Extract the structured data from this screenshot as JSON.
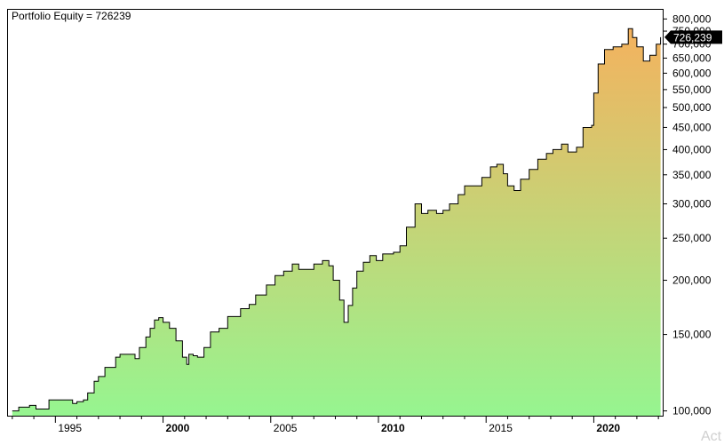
{
  "chart_data": {
    "type": "area",
    "title": "Portfolio Equity = 726239",
    "series": [
      {
        "points": [
          [
            1993.0,
            100000
          ],
          [
            1993.3,
            102000
          ],
          [
            1993.8,
            103000
          ],
          [
            1994.1,
            101000
          ],
          [
            1994.7,
            106000
          ],
          [
            1995.7,
            106000
          ],
          [
            1995.8,
            104000
          ],
          [
            1996.0,
            105000
          ],
          [
            1996.3,
            106000
          ],
          [
            1996.5,
            110000
          ],
          [
            1996.8,
            117000
          ],
          [
            1997.0,
            120000
          ],
          [
            1997.3,
            126000
          ],
          [
            1997.8,
            133000
          ],
          [
            1998.0,
            135000
          ],
          [
            1998.5,
            135000
          ],
          [
            1998.7,
            132000
          ],
          [
            1998.9,
            140000
          ],
          [
            1999.2,
            148000
          ],
          [
            1999.4,
            155000
          ],
          [
            1999.6,
            162000
          ],
          [
            1999.8,
            164000
          ],
          [
            2000.0,
            160000
          ],
          [
            2000.3,
            155000
          ],
          [
            2000.6,
            145000
          ],
          [
            2000.9,
            133000
          ],
          [
            2001.1,
            128000
          ],
          [
            2001.2,
            135000
          ],
          [
            2001.4,
            134000
          ],
          [
            2001.6,
            133000
          ],
          [
            2001.9,
            140000
          ],
          [
            2002.2,
            152000
          ],
          [
            2002.6,
            155000
          ],
          [
            2003.0,
            165000
          ],
          [
            2003.6,
            172000
          ],
          [
            2004.0,
            176000
          ],
          [
            2004.3,
            185000
          ],
          [
            2004.8,
            195000
          ],
          [
            2005.2,
            205000
          ],
          [
            2005.6,
            210000
          ],
          [
            2006.0,
            218000
          ],
          [
            2006.3,
            212000
          ],
          [
            2006.6,
            212000
          ],
          [
            2007.0,
            218000
          ],
          [
            2007.4,
            222000
          ],
          [
            2007.7,
            216000
          ],
          [
            2007.9,
            200000
          ],
          [
            2008.2,
            180000
          ],
          [
            2008.4,
            160000
          ],
          [
            2008.6,
            175000
          ],
          [
            2008.8,
            192000
          ],
          [
            2009.0,
            210000
          ],
          [
            2009.3,
            220000
          ],
          [
            2009.6,
            228000
          ],
          [
            2009.9,
            222000
          ],
          [
            2010.2,
            230000
          ],
          [
            2010.7,
            232000
          ],
          [
            2011.0,
            240000
          ],
          [
            2011.3,
            265000
          ],
          [
            2011.7,
            300000
          ],
          [
            2012.0,
            285000
          ],
          [
            2012.3,
            290000
          ],
          [
            2012.7,
            285000
          ],
          [
            2013.0,
            290000
          ],
          [
            2013.3,
            300000
          ],
          [
            2013.7,
            315000
          ],
          [
            2014.0,
            330000
          ],
          [
            2014.4,
            330000
          ],
          [
            2014.8,
            345000
          ],
          [
            2015.2,
            365000
          ],
          [
            2015.5,
            370000
          ],
          [
            2015.8,
            352000
          ],
          [
            2016.0,
            330000
          ],
          [
            2016.3,
            322000
          ],
          [
            2016.6,
            342000
          ],
          [
            2017.0,
            360000
          ],
          [
            2017.4,
            380000
          ],
          [
            2017.8,
            392000
          ],
          [
            2018.1,
            400000
          ],
          [
            2018.5,
            412000
          ],
          [
            2018.8,
            395000
          ],
          [
            2019.2,
            405000
          ],
          [
            2019.5,
            450000
          ],
          [
            2019.9,
            455000
          ],
          [
            2020.0,
            540000
          ],
          [
            2020.2,
            630000
          ],
          [
            2020.5,
            680000
          ],
          [
            2020.9,
            690000
          ],
          [
            2021.3,
            700000
          ],
          [
            2021.6,
            760000
          ],
          [
            2021.8,
            725000
          ],
          [
            2022.0,
            690000
          ],
          [
            2022.3,
            640000
          ],
          [
            2022.6,
            660000
          ],
          [
            2022.9,
            700000
          ],
          [
            2023.1,
            726239
          ]
        ],
        "last_value_label": "726,239",
        "fill_top_color": "#f4b25e",
        "fill_bottom_color": "#96f590",
        "line_color": "#000000"
      }
    ],
    "x_axis": {
      "range": [
        1992.8,
        2023.2
      ],
      "ticks": [
        {
          "value": 1995,
          "label": "1995",
          "bold": false
        },
        {
          "value": 2000,
          "label": "2000",
          "bold": true
        },
        {
          "value": 2005,
          "label": "2005",
          "bold": false
        },
        {
          "value": 2010,
          "label": "2010",
          "bold": true
        },
        {
          "value": 2015,
          "label": "2015",
          "bold": false
        },
        {
          "value": 2020,
          "label": "2020",
          "bold": true
        }
      ]
    },
    "y_axis": {
      "scale": "log",
      "range": [
        97500,
        840000
      ],
      "position": "right",
      "ticks": [
        {
          "value": 100000,
          "label": "100,000"
        },
        {
          "value": 150000,
          "label": "150,000"
        },
        {
          "value": 200000,
          "label": "200,000"
        },
        {
          "value": 250000,
          "label": "250,000"
        },
        {
          "value": 300000,
          "label": "300,000"
        },
        {
          "value": 350000,
          "label": "350,000"
        },
        {
          "value": 400000,
          "label": "400,000"
        },
        {
          "value": 450000,
          "label": "450,000"
        },
        {
          "value": 500000,
          "label": "500,000"
        },
        {
          "value": 550000,
          "label": "550,000"
        },
        {
          "value": 600000,
          "label": "600,000"
        },
        {
          "value": 650000,
          "label": "650,000"
        },
        {
          "value": 700000,
          "label": "700,000"
        },
        {
          "value": 750000,
          "label": "750,000"
        },
        {
          "value": 800000,
          "label": "800,000"
        }
      ]
    },
    "grid": false,
    "legend": "none"
  },
  "watermark": "Act"
}
